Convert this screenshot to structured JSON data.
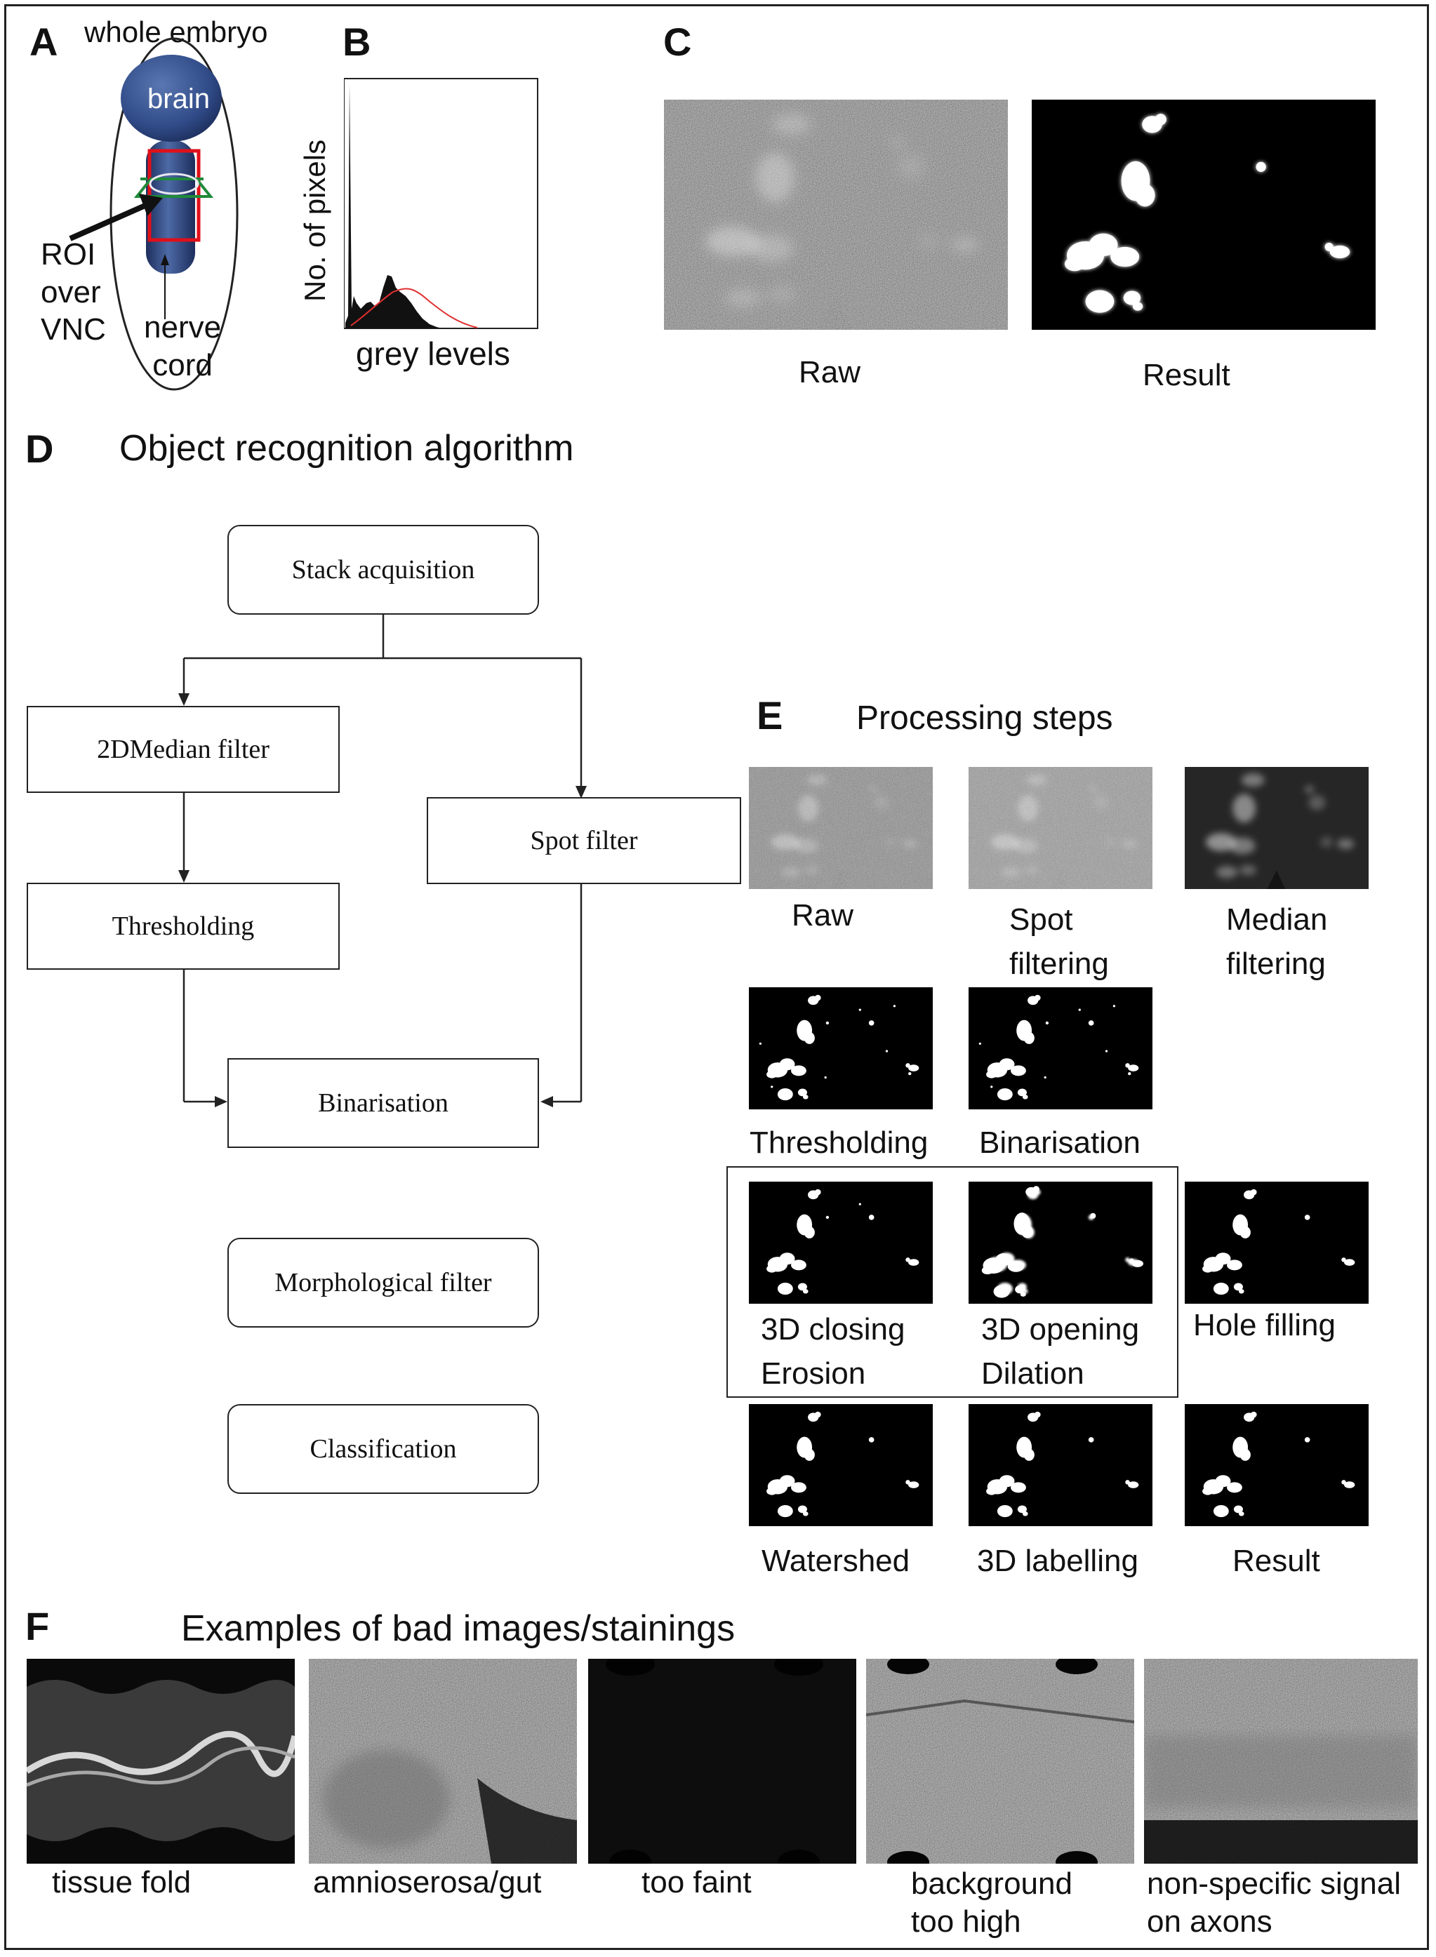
{
  "panels": {
    "A": {
      "letter": "A",
      "title": "whole embryo",
      "brain_label": "brain",
      "roi_label": [
        "ROI",
        "over",
        "VNC"
      ],
      "nerve_label": [
        "nerve",
        "cord"
      ]
    },
    "B": {
      "letter": "B",
      "ylabel": "No. of pixels",
      "xlabel": "grey levels"
    },
    "C": {
      "letter": "C",
      "raw_label": "Raw",
      "result_label": "Result"
    },
    "D": {
      "letter": "D",
      "title": "Object recognition algorithm",
      "steps": {
        "stack": "Stack acquisition",
        "median": "2DMedian filter",
        "spot": "Spot filter",
        "threshold": "Thresholding",
        "binarisation": "Binarisation",
        "morph": "Morphological filter",
        "classification": "Classification"
      }
    },
    "E": {
      "letter": "E",
      "title": "Processing steps",
      "labels": {
        "raw": "Raw",
        "spot": [
          "Spot",
          "filtering"
        ],
        "median": [
          "Median",
          "filtering"
        ],
        "thresholding": "Thresholding",
        "binarisation": "Binarisation",
        "closing": [
          "3D closing",
          "Erosion"
        ],
        "opening": [
          "3D opening",
          "Dilation"
        ],
        "hole": "Hole filling",
        "watershed": "Watershed",
        "labelling": "3D labelling",
        "result": "Result"
      }
    },
    "F": {
      "letter": "F",
      "title": "Examples of bad images/stainings",
      "examples": [
        [
          "tissue fold"
        ],
        [
          "amnioserosa/gut"
        ],
        [
          "too faint"
        ],
        [
          "background",
          "too high"
        ],
        [
          "non-specific signal",
          "on axons"
        ]
      ]
    }
  },
  "colors": {
    "embryo_blue": "#2f4a86",
    "roi_red": "#e0101a",
    "trapezoid_green": "#1f8a3a",
    "hist_fit_red": "#e03030"
  }
}
